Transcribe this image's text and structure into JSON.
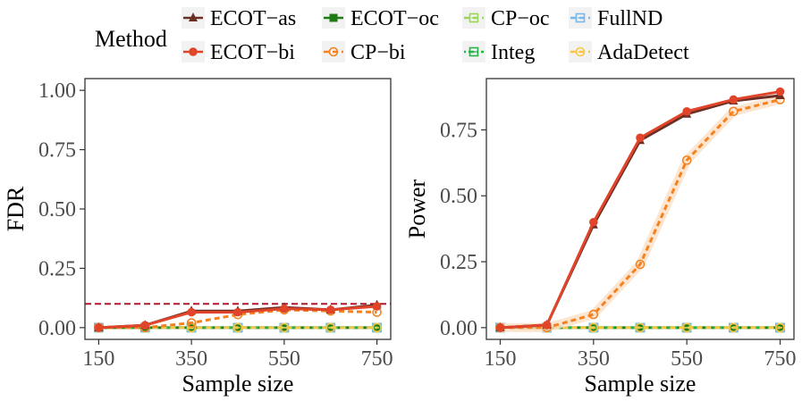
{
  "legend": {
    "title": "Method",
    "items": [
      {
        "label": "ECOT−as",
        "color": "#6b2f26",
        "dash": "",
        "marker": "triangle"
      },
      {
        "label": "ECOT−oc",
        "color": "#1e7b15",
        "dash": "",
        "marker": "square-filled"
      },
      {
        "label": "CP−oc",
        "color": "#98d855",
        "dash": "6,4",
        "marker": "square-x"
      },
      {
        "label": "FullND",
        "color": "#7ab6e8",
        "dash": "6,4",
        "marker": "square-x"
      },
      {
        "label": "ECOT−bi",
        "color": "#e0452a",
        "dash": "",
        "marker": "circle-filled"
      },
      {
        "label": "CP−bi",
        "color": "#f5821f",
        "dash": "6,4",
        "marker": "circle-open"
      },
      {
        "label": "Integ",
        "color": "#27b44a",
        "dash": "2,3,6,3",
        "marker": "square-x"
      },
      {
        "label": "AdaDetect",
        "color": "#f7c744",
        "dash": "6,4",
        "marker": "circle-x"
      }
    ]
  },
  "chart_data": [
    {
      "type": "line",
      "xlabel": "Sample size",
      "ylabel": "FDR",
      "x": [
        150,
        250,
        350,
        450,
        550,
        650,
        750
      ],
      "xticks": [
        150,
        350,
        550,
        750
      ],
      "xlim": [
        150,
        750
      ],
      "ylim": [
        0,
        1
      ],
      "yticks": [
        "0.00",
        "0.25",
        "0.50",
        "0.75",
        "1.00"
      ],
      "reference_line": {
        "y": 0.1,
        "color": "#b2182b",
        "dash": "dashed"
      },
      "series": [
        {
          "name": "ECOT−as",
          "values": [
            0.0,
            0.01,
            0.07,
            0.07,
            0.085,
            0.075,
            0.095
          ]
        },
        {
          "name": "ECOT−bi",
          "values": [
            0.0,
            0.01,
            0.065,
            0.065,
            0.08,
            0.075,
            0.09
          ]
        },
        {
          "name": "CP−bi",
          "values": [
            0.0,
            0.0,
            0.02,
            0.055,
            0.075,
            0.07,
            0.065
          ]
        },
        {
          "name": "ECOT−oc",
          "values": [
            0,
            0,
            0,
            0,
            0,
            0,
            0
          ]
        },
        {
          "name": "CP−oc",
          "values": [
            0,
            0,
            0,
            0,
            0,
            0,
            0
          ]
        },
        {
          "name": "Integ",
          "values": [
            0,
            0,
            0,
            0,
            0,
            0,
            0
          ]
        },
        {
          "name": "FullND",
          "values": [
            0,
            0,
            0,
            0,
            0,
            0,
            0
          ]
        },
        {
          "name": "AdaDetect",
          "values": [
            0,
            0,
            0,
            0,
            0,
            0,
            0
          ]
        }
      ]
    },
    {
      "type": "line",
      "xlabel": "Sample size",
      "ylabel": "Power",
      "x": [
        150,
        250,
        350,
        450,
        550,
        650,
        750
      ],
      "xticks": [
        150,
        350,
        550,
        750
      ],
      "xlim": [
        150,
        750
      ],
      "ylim": [
        0,
        0.9
      ],
      "yticks": [
        "0.00",
        "0.25",
        "0.50",
        "0.75"
      ],
      "series": [
        {
          "name": "ECOT−as",
          "values": [
            0.0,
            0.01,
            0.39,
            0.71,
            0.81,
            0.86,
            0.88
          ]
        },
        {
          "name": "ECOT−bi",
          "values": [
            0.0,
            0.01,
            0.4,
            0.72,
            0.82,
            0.865,
            0.895
          ]
        },
        {
          "name": "CP−bi",
          "values": [
            0.0,
            0.0,
            0.05,
            0.24,
            0.635,
            0.82,
            0.865
          ]
        },
        {
          "name": "ECOT−oc",
          "values": [
            0,
            0,
            0,
            0,
            0,
            0,
            0
          ]
        },
        {
          "name": "CP−oc",
          "values": [
            0,
            0,
            0,
            0,
            0,
            0,
            0
          ]
        },
        {
          "name": "Integ",
          "values": [
            0,
            0,
            0,
            0,
            0,
            0,
            0
          ]
        },
        {
          "name": "FullND",
          "values": [
            0,
            0,
            0,
            0,
            0,
            0,
            0
          ]
        },
        {
          "name": "AdaDetect",
          "values": [
            0,
            0,
            0,
            0,
            0,
            0,
            0
          ]
        }
      ]
    }
  ]
}
